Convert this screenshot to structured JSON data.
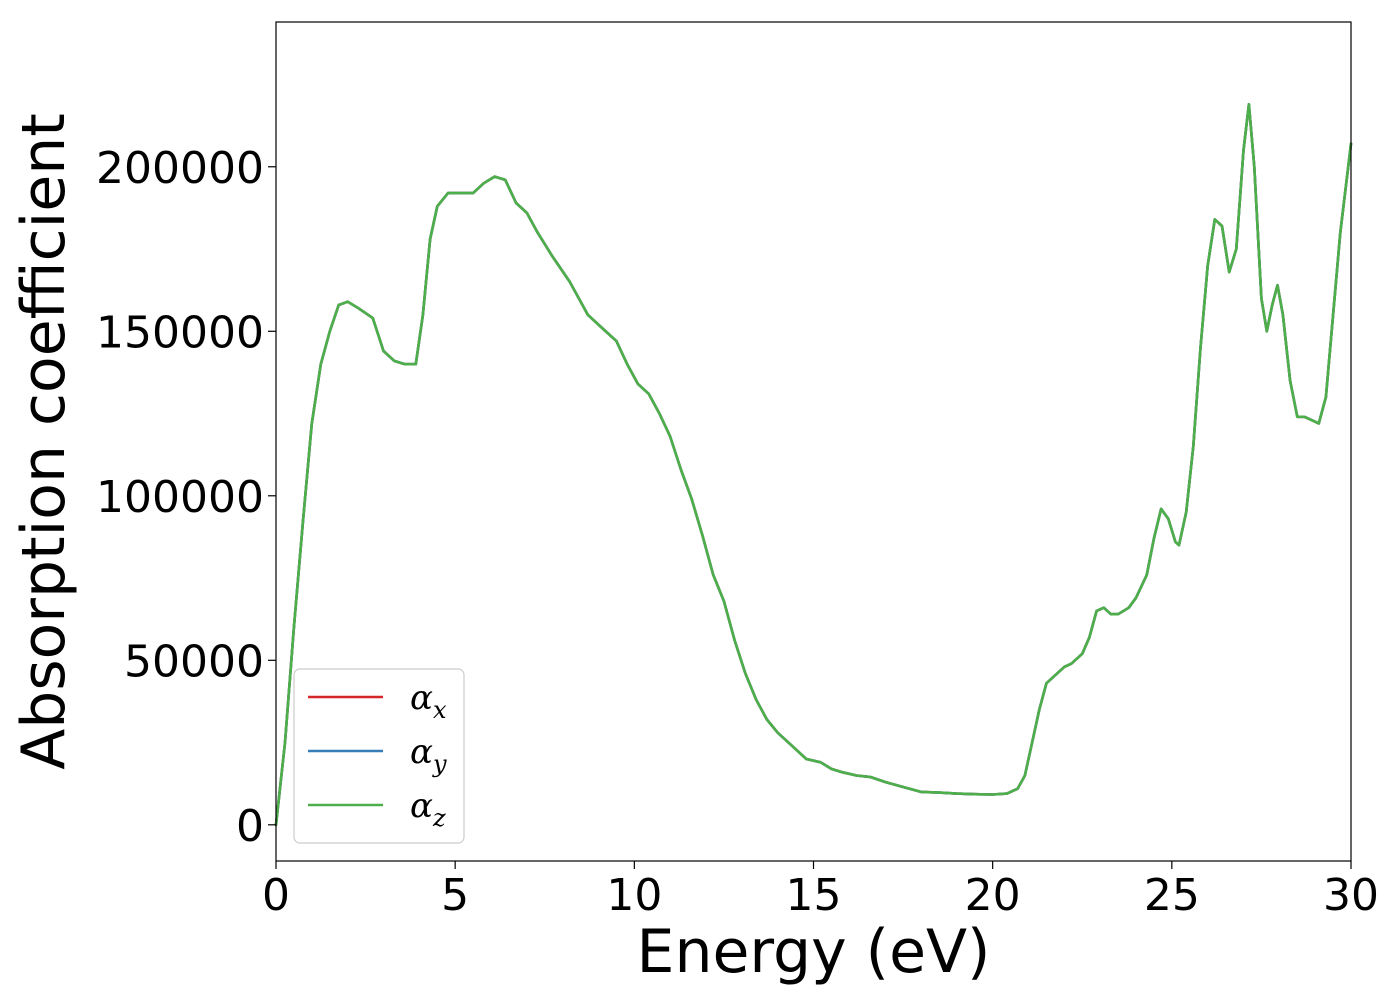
{
  "chart_data": {
    "type": "line",
    "xlabel": "Energy (eV)",
    "ylabel": "Absorption coefficient",
    "xlim": [
      0,
      30
    ],
    "ylim": [
      -11000,
      244000
    ],
    "x_ticks": [
      "0",
      "5",
      "10",
      "15",
      "20",
      "25",
      "30"
    ],
    "y_ticks": [
      "0",
      "50000",
      "100000",
      "150000",
      "200000"
    ],
    "grid": false,
    "legend_position": "lower-left",
    "x": [
      0,
      0.25,
      0.5,
      0.75,
      1.0,
      1.25,
      1.5,
      1.75,
      2.0,
      2.3,
      2.7,
      3.0,
      3.3,
      3.6,
      3.9,
      4.1,
      4.3,
      4.5,
      4.8,
      5.1,
      5.5,
      5.8,
      6.1,
      6.4,
      6.7,
      7.0,
      7.3,
      7.7,
      8.2,
      8.7,
      9.1,
      9.5,
      9.8,
      10.1,
      10.4,
      10.7,
      11.0,
      11.3,
      11.6,
      11.9,
      12.2,
      12.5,
      12.8,
      13.1,
      13.4,
      13.7,
      14.0,
      14.4,
      14.8,
      15.2,
      15.5,
      15.8,
      16.2,
      16.6,
      17.0,
      17.5,
      18.0,
      18.5,
      19.0,
      19.5,
      20.0,
      20.4,
      20.7,
      20.9,
      21.1,
      21.3,
      21.5,
      21.7,
      22.0,
      22.2,
      22.5,
      22.7,
      22.9,
      23.1,
      23.3,
      23.5,
      23.8,
      24.0,
      24.3,
      24.5,
      24.7,
      24.9,
      25.1,
      25.2,
      25.4,
      25.6,
      25.8,
      26.0,
      26.2,
      26.4,
      26.6,
      26.8,
      27.0,
      27.15,
      27.3,
      27.5,
      27.65,
      27.8,
      27.95,
      28.1,
      28.3,
      28.5,
      28.7,
      28.9,
      29.1,
      29.3,
      29.5,
      29.7,
      30.0
    ],
    "series": [
      {
        "name": "α_x",
        "label_base": "α",
        "label_sub": "x",
        "color": "#d62728",
        "values": [
          0,
          25000,
          60000,
          92000,
          122000,
          140000,
          150000,
          158000,
          159000,
          157000,
          154000,
          144000,
          141000,
          140000,
          140000,
          155000,
          178000,
          188000,
          192000,
          192000,
          192000,
          195000,
          197000,
          196000,
          189000,
          186000,
          180000,
          173000,
          165000,
          155000,
          151000,
          147000,
          140000,
          134000,
          131000,
          125000,
          118000,
          108000,
          99000,
          88000,
          76000,
          68000,
          56000,
          46000,
          38000,
          32000,
          28000,
          24000,
          20000,
          19000,
          17000,
          16000,
          15000,
          14500,
          13000,
          11500,
          10000,
          9800,
          9500,
          9300,
          9200,
          9500,
          11000,
          15000,
          25000,
          35000,
          43000,
          45000,
          48000,
          49000,
          52000,
          57000,
          65000,
          66000,
          64000,
          64000,
          66000,
          69000,
          76000,
          87000,
          96000,
          93000,
          86000,
          85000,
          95000,
          115000,
          145000,
          170000,
          184000,
          182000,
          168000,
          175000,
          205000,
          219000,
          200000,
          160000,
          150000,
          158000,
          164000,
          155000,
          135000,
          124000,
          124000,
          123000,
          122000,
          130000,
          155000,
          180000,
          207000
        ]
      },
      {
        "name": "α_y",
        "label_base": "α",
        "label_sub": "y",
        "color": "#377eb8",
        "values": [
          0,
          25000,
          60000,
          92000,
          122000,
          140000,
          150000,
          158000,
          159000,
          157000,
          154000,
          144000,
          141000,
          140000,
          140000,
          155000,
          178000,
          188000,
          192000,
          192000,
          192000,
          195000,
          197000,
          196000,
          189000,
          186000,
          180000,
          173000,
          165000,
          155000,
          151000,
          147000,
          140000,
          134000,
          131000,
          125000,
          118000,
          108000,
          99000,
          88000,
          76000,
          68000,
          56000,
          46000,
          38000,
          32000,
          28000,
          24000,
          20000,
          19000,
          17000,
          16000,
          15000,
          14500,
          13000,
          11500,
          10000,
          9800,
          9500,
          9300,
          9200,
          9500,
          11000,
          15000,
          25000,
          35000,
          43000,
          45000,
          48000,
          49000,
          52000,
          57000,
          65000,
          66000,
          64000,
          64000,
          66000,
          69000,
          76000,
          87000,
          96000,
          93000,
          86000,
          85000,
          95000,
          115000,
          145000,
          170000,
          184000,
          182000,
          168000,
          175000,
          205000,
          219000,
          200000,
          160000,
          150000,
          158000,
          164000,
          155000,
          135000,
          124000,
          124000,
          123000,
          122000,
          130000,
          155000,
          180000,
          207000
        ]
      },
      {
        "name": "α_z",
        "label_base": "α",
        "label_sub": "z",
        "color": "#4daf4a",
        "values": [
          0,
          25000,
          60000,
          92000,
          122000,
          140000,
          150000,
          158000,
          159000,
          157000,
          154000,
          144000,
          141000,
          140000,
          140000,
          155000,
          178000,
          188000,
          192000,
          192000,
          192000,
          195000,
          197000,
          196000,
          189000,
          186000,
          180000,
          173000,
          165000,
          155000,
          151000,
          147000,
          140000,
          134000,
          131000,
          125000,
          118000,
          108000,
          99000,
          88000,
          76000,
          68000,
          56000,
          46000,
          38000,
          32000,
          28000,
          24000,
          20000,
          19000,
          17000,
          16000,
          15000,
          14500,
          13000,
          11500,
          10000,
          9800,
          9500,
          9300,
          9200,
          9500,
          11000,
          15000,
          25000,
          35000,
          43000,
          45000,
          48000,
          49000,
          52000,
          57000,
          65000,
          66000,
          64000,
          64000,
          66000,
          69000,
          76000,
          87000,
          96000,
          93000,
          86000,
          85000,
          95000,
          115000,
          145000,
          170000,
          184000,
          182000,
          168000,
          175000,
          205000,
          219000,
          200000,
          160000,
          150000,
          158000,
          164000,
          155000,
          135000,
          124000,
          124000,
          123000,
          122000,
          130000,
          155000,
          180000,
          207000
        ]
      }
    ]
  }
}
